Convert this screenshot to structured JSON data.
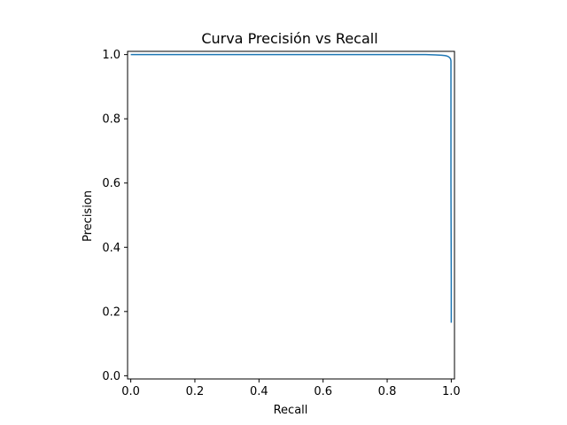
{
  "chart_data": {
    "type": "line",
    "title": "Curva Precisión vs Recall",
    "xlabel": "Recall",
    "ylabel": "Precision",
    "xlim": [
      -0.01,
      1.01
    ],
    "ylim": [
      -0.01,
      1.01
    ],
    "xticks": [
      0.0,
      0.2,
      0.4,
      0.6,
      0.8,
      1.0
    ],
    "xtick_labels": [
      "0.0",
      "0.2",
      "0.4",
      "0.6",
      "0.8",
      "1.0"
    ],
    "yticks": [
      0.0,
      0.2,
      0.4,
      0.6,
      0.8,
      1.0
    ],
    "ytick_labels": [
      "0.0",
      "0.2",
      "0.4",
      "0.6",
      "0.8",
      "1.0"
    ],
    "grid": false,
    "series": [
      {
        "color": "#1f77b4",
        "x": [
          0.0,
          0.3,
          0.6,
          0.85,
          0.92,
          0.95,
          0.97,
          0.98,
          0.985,
          0.99,
          0.993,
          0.995,
          0.997,
          0.998,
          0.999,
          0.999,
          1.0,
          1.0
        ],
        "y": [
          1.0,
          1.0,
          1.0,
          1.0,
          1.0,
          0.999,
          0.998,
          0.997,
          0.996,
          0.994,
          0.992,
          0.99,
          0.988,
          0.985,
          0.98,
          0.6,
          0.3,
          0.165
        ]
      }
    ]
  }
}
